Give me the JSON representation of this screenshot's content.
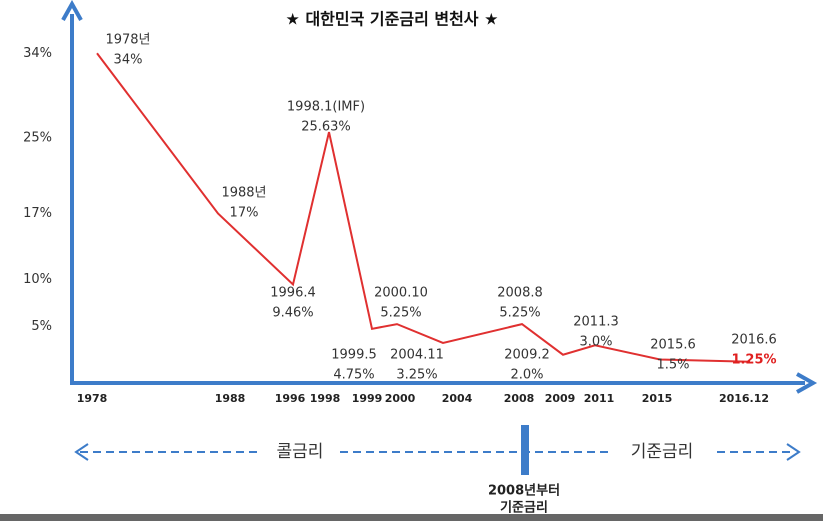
{
  "chart_data": {
    "type": "line",
    "title": "★ 대한민국 기준금리 변천사 ★",
    "categories": [
      "1978년",
      "1988년",
      "1996.4",
      "1998.1(IMF)",
      "1999.5",
      "2000.10",
      "2004.11",
      "2008.8",
      "2009.2",
      "2011.3",
      "2015.6",
      "2016.6"
    ],
    "values": [
      34,
      17,
      9.46,
      25.63,
      4.75,
      5.25,
      3.25,
      5.25,
      2.0,
      3.0,
      1.5,
      1.25
    ],
    "value_labels": [
      "34%",
      "17%",
      "9.46%",
      "25.63%",
      "4.75%",
      "5.25%",
      "3.25%",
      "5.25%",
      "2.0%",
      "3.0%",
      "1.5%",
      "1.25%"
    ],
    "x_axis_labels": [
      "1978",
      "1988",
      "1996",
      "1998",
      "1999",
      "2000",
      "2004",
      "2008",
      "2009",
      "2011",
      "2015",
      "2016.12"
    ],
    "ylim": [
      -1,
      37
    ],
    "yticks": [
      {
        "value": 34,
        "label": "34%"
      },
      {
        "value": 25,
        "label": "25%"
      },
      {
        "value": 17,
        "label": "17%"
      },
      {
        "value": 10,
        "label": "10%"
      },
      {
        "value": 5,
        "label": "5%"
      }
    ],
    "color": "#e03030",
    "axis_color": "#3d7cc9",
    "highlight": {
      "index": 11,
      "color": "#e02020"
    },
    "annotations": {
      "left": "콜금리",
      "right": "기준금리",
      "since": [
        "2008년부터",
        "기준금리"
      ]
    }
  }
}
